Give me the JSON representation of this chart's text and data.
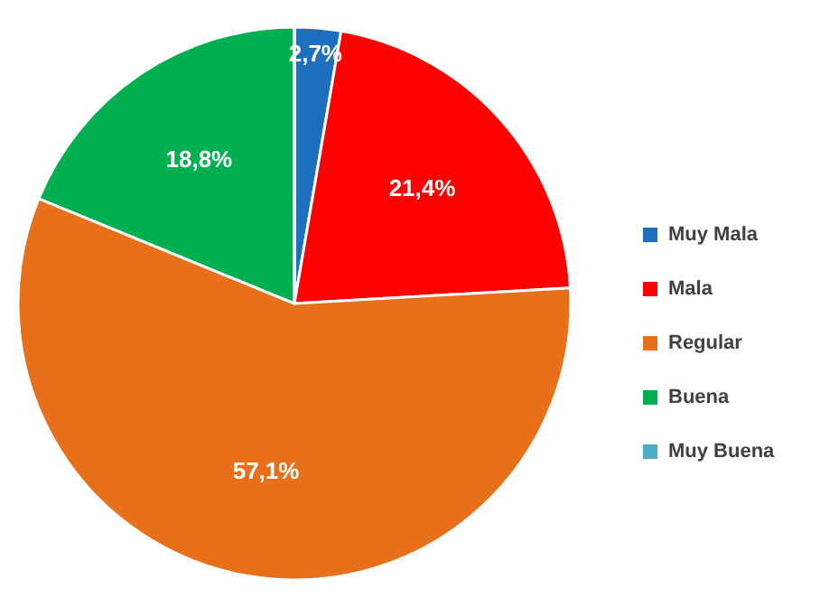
{
  "chart_data": {
    "type": "pie",
    "categories": [
      "Muy Mala",
      "Mala",
      "Regular",
      "Buena",
      "Muy Buena"
    ],
    "values": [
      2.7,
      21.4,
      57.1,
      18.8,
      0
    ],
    "colors": [
      "#1f6fbf",
      "#ff0000",
      "#e8701a",
      "#00b050",
      "#4bacc6"
    ],
    "value_labels": [
      "2,7%",
      "21,4%",
      "57,1%",
      "18,8%",
      null
    ],
    "legend": "right"
  }
}
